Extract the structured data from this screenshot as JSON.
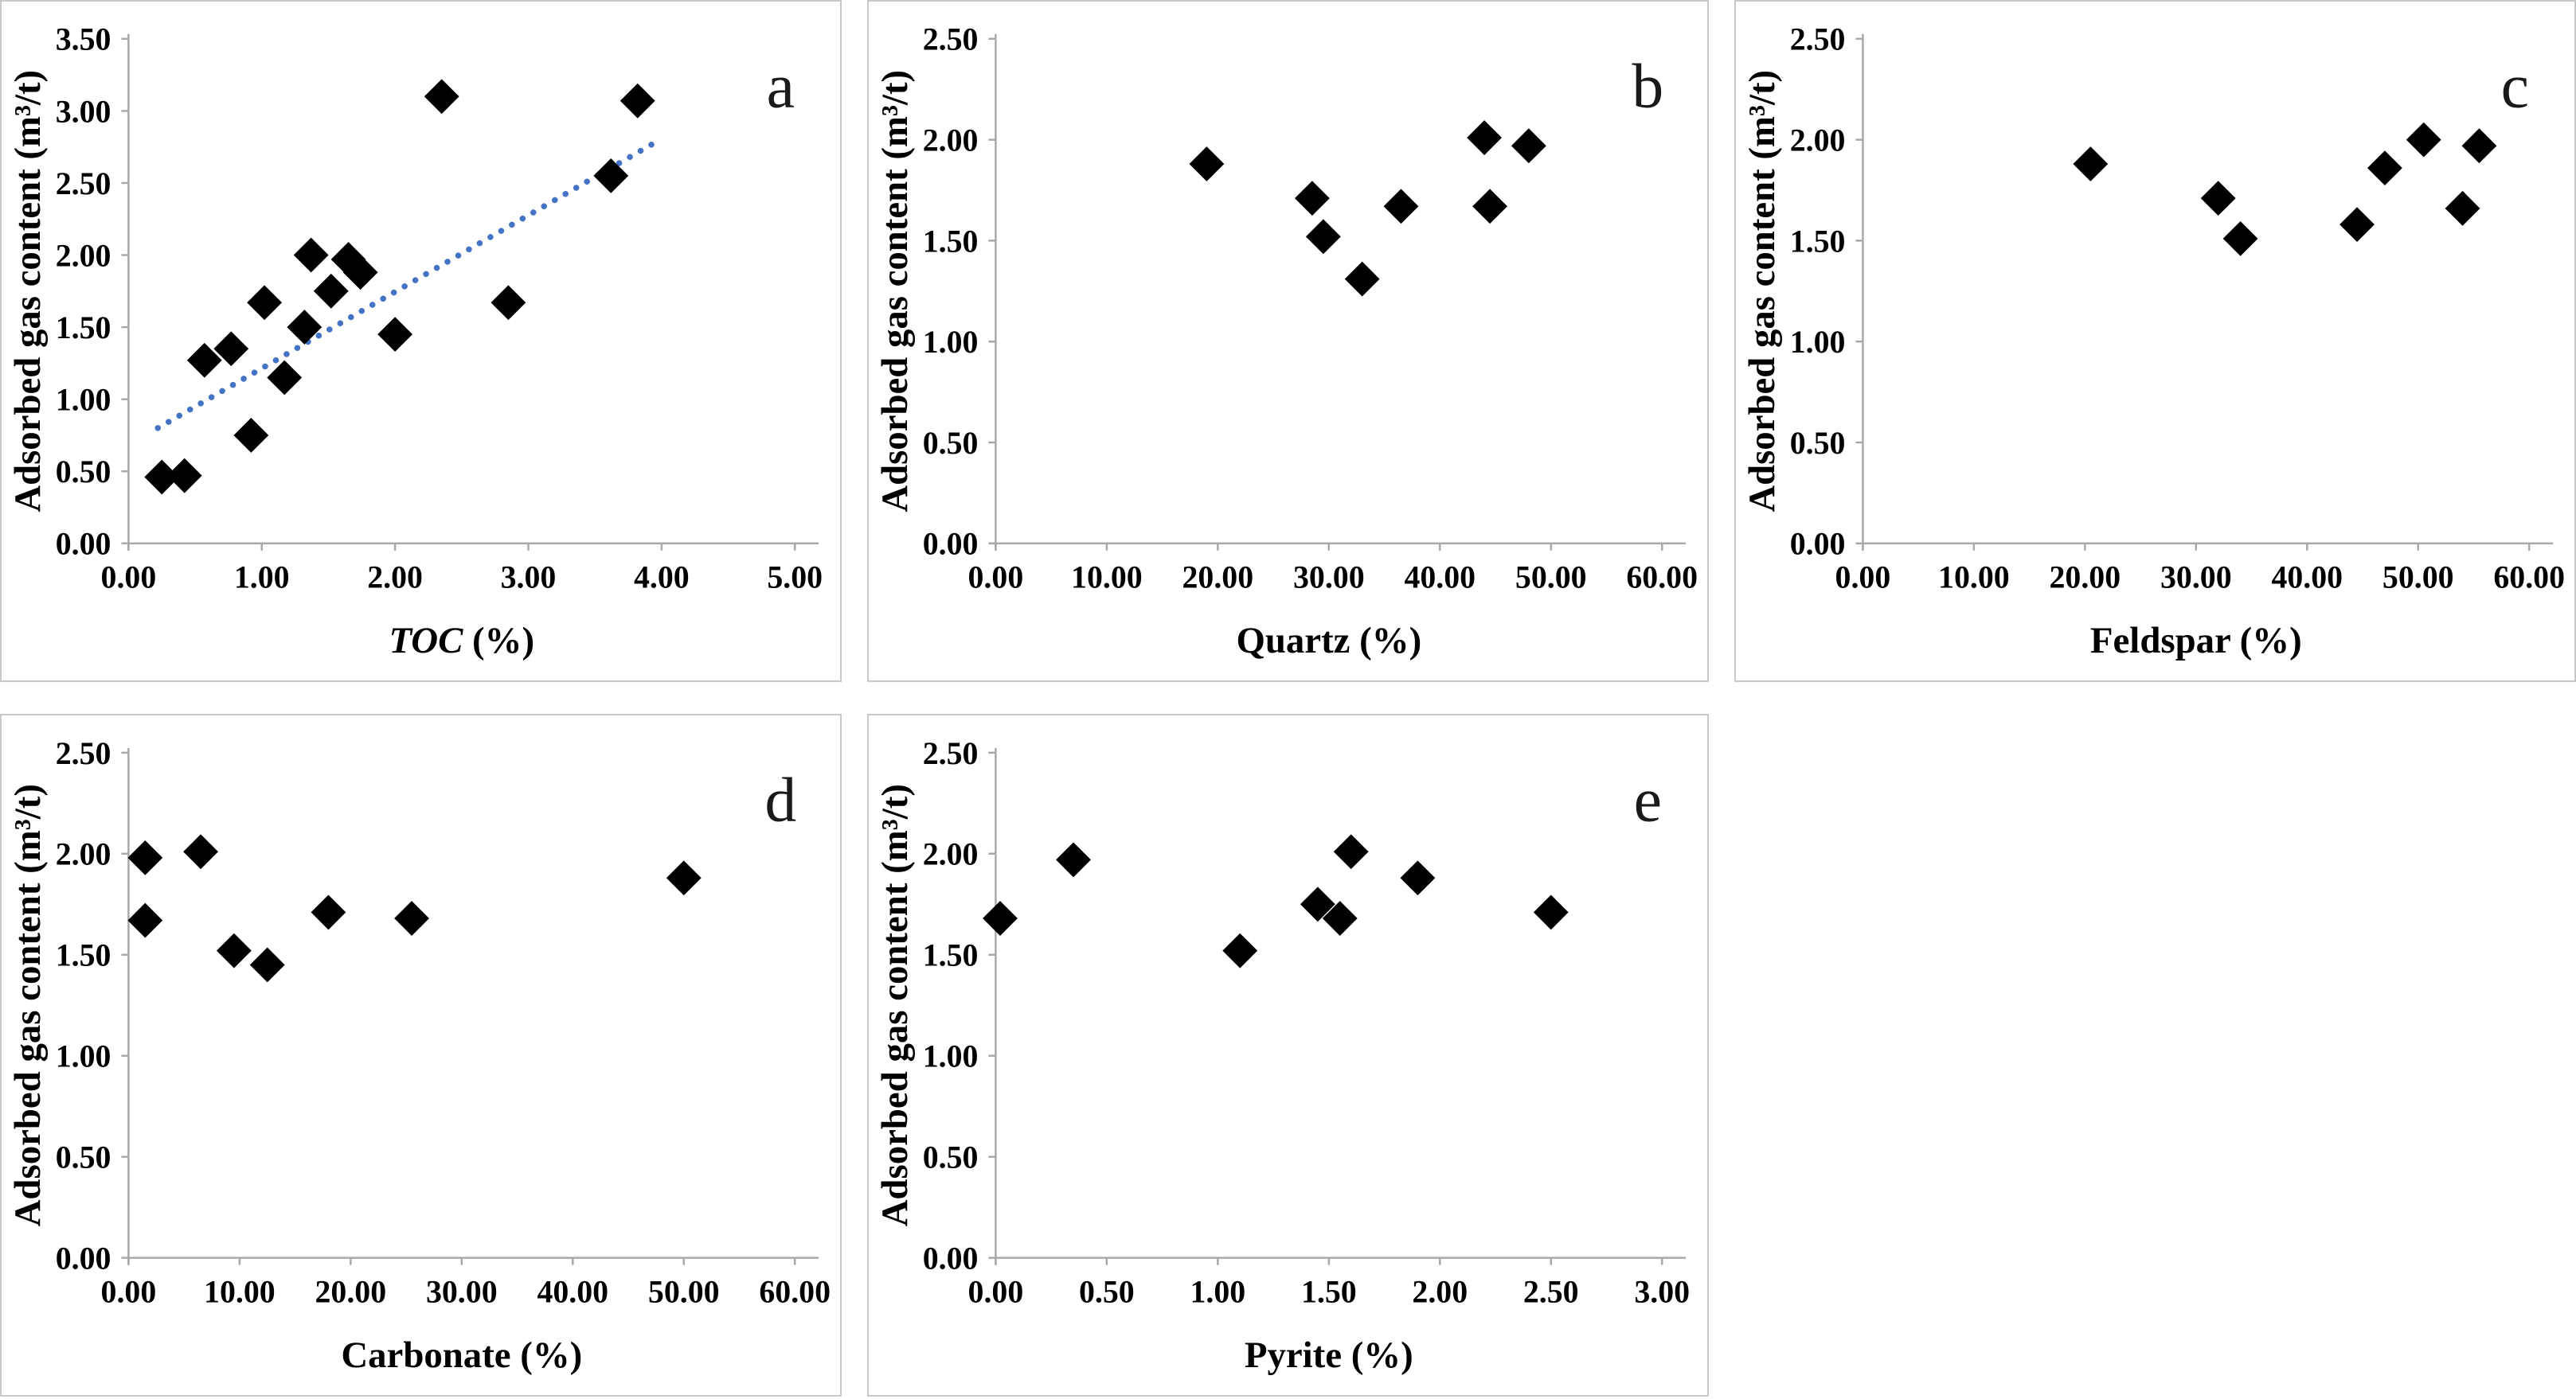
{
  "figure": {
    "background_color": "#ffffff",
    "panel_border_color": "#c9c9c9",
    "axis_line_color": "#a8a8a8",
    "marker_shape": "diamond",
    "marker_color": "#000000",
    "shared_ylabel": "Adsorbed gas content (m³/t)",
    "panel_letters": [
      "a",
      "b",
      "c",
      "d",
      "e"
    ]
  },
  "chart_data": [
    {
      "id": "a",
      "type": "scatter",
      "panel_letter": "a",
      "xlabel": "TOC (%)",
      "xlabel_parts": [
        {
          "text": "TOC",
          "italic": true
        },
        {
          "text": " (%)",
          "italic": false
        }
      ],
      "ylabel": "Adsorbed gas content (m³/t)",
      "xlim": [
        0,
        5
      ],
      "ylim": [
        0,
        3.5
      ],
      "xticks": [
        0,
        1,
        2,
        3,
        4,
        5
      ],
      "yticks": [
        0,
        0.5,
        1,
        1.5,
        2,
        2.5,
        3,
        3.5
      ],
      "tick_decimals": 2,
      "grid": false,
      "legend": null,
      "points": [
        [
          0.25,
          0.46
        ],
        [
          0.42,
          0.47
        ],
        [
          0.57,
          1.27
        ],
        [
          0.77,
          1.35
        ],
        [
          0.92,
          0.75
        ],
        [
          1.02,
          1.67
        ],
        [
          1.17,
          1.15
        ],
        [
          1.32,
          1.5
        ],
        [
          1.37,
          2.0
        ],
        [
          1.52,
          1.75
        ],
        [
          1.65,
          1.97
        ],
        [
          1.74,
          1.88
        ],
        [
          2.0,
          1.45
        ],
        [
          2.35,
          3.1
        ],
        [
          2.85,
          1.67
        ],
        [
          3.62,
          2.55
        ],
        [
          3.82,
          3.07
        ]
      ],
      "trendline": {
        "style": "dotted",
        "color": "#4472C4",
        "x1": 0.22,
        "y1": 0.8,
        "x2": 3.95,
        "y2": 2.78
      }
    },
    {
      "id": "b",
      "type": "scatter",
      "panel_letter": "b",
      "xlabel": "Quartz (%)",
      "xlabel_parts": [
        {
          "text": "Quartz (%)",
          "italic": false
        }
      ],
      "ylabel": "Adsorbed gas content (m³/t)",
      "xlim": [
        0,
        60
      ],
      "ylim": [
        0,
        2.5
      ],
      "xticks": [
        0,
        10,
        20,
        30,
        40,
        50,
        60
      ],
      "yticks": [
        0,
        0.5,
        1,
        1.5,
        2,
        2.5
      ],
      "tick_decimals": 2,
      "grid": false,
      "legend": null,
      "points": [
        [
          19.0,
          1.88
        ],
        [
          28.5,
          1.71
        ],
        [
          29.5,
          1.52
        ],
        [
          33.0,
          1.31
        ],
        [
          36.5,
          1.67
        ],
        [
          44.0,
          2.01
        ],
        [
          44.5,
          1.67
        ],
        [
          48.0,
          1.97
        ]
      ],
      "trendline": null
    },
    {
      "id": "c",
      "type": "scatter",
      "panel_letter": "c",
      "xlabel": "Feldspar (%)",
      "xlabel_parts": [
        {
          "text": "Feldspar (%)",
          "italic": false
        }
      ],
      "ylabel": "Adsorbed gas content (m³/t)",
      "xlim": [
        0,
        60
      ],
      "ylim": [
        0,
        2.5
      ],
      "xticks": [
        0,
        10,
        20,
        30,
        40,
        50,
        60
      ],
      "yticks": [
        0,
        0.5,
        1,
        1.5,
        2,
        2.5
      ],
      "tick_decimals": 2,
      "grid": false,
      "legend": null,
      "points": [
        [
          20.5,
          1.88
        ],
        [
          32.0,
          1.71
        ],
        [
          34.0,
          1.51
        ],
        [
          44.5,
          1.58
        ],
        [
          47.0,
          1.86
        ],
        [
          50.5,
          2.0
        ],
        [
          54.0,
          1.66
        ],
        [
          55.5,
          1.97
        ]
      ],
      "trendline": null
    },
    {
      "id": "d",
      "type": "scatter",
      "panel_letter": "d",
      "xlabel": "Carbonate (%)",
      "xlabel_parts": [
        {
          "text": "Carbonate (%)",
          "italic": false
        }
      ],
      "ylabel": "Adsorbed gas content (m³/t)",
      "xlim": [
        0,
        60
      ],
      "ylim": [
        0,
        2.5
      ],
      "xticks": [
        0,
        10,
        20,
        30,
        40,
        50,
        60
      ],
      "yticks": [
        0,
        0.5,
        1,
        1.5,
        2,
        2.5
      ],
      "tick_decimals": 2,
      "grid": false,
      "legend": null,
      "points": [
        [
          1.5,
          1.98
        ],
        [
          1.5,
          1.67
        ],
        [
          6.5,
          2.01
        ],
        [
          9.5,
          1.52
        ],
        [
          12.5,
          1.45
        ],
        [
          18.0,
          1.71
        ],
        [
          25.5,
          1.68
        ],
        [
          50.0,
          1.88
        ]
      ],
      "trendline": null
    },
    {
      "id": "e",
      "type": "scatter",
      "panel_letter": "e",
      "xlabel": "Pyrite (%)",
      "xlabel_parts": [
        {
          "text": "Pyrite (%)",
          "italic": false
        }
      ],
      "ylabel": "Adsorbed gas content (m³/t)",
      "xlim": [
        0,
        3
      ],
      "ylim": [
        0,
        2.5
      ],
      "xticks": [
        0,
        0.5,
        1,
        1.5,
        2,
        2.5,
        3
      ],
      "yticks": [
        0,
        0.5,
        1,
        1.5,
        2,
        2.5
      ],
      "tick_decimals": 2,
      "grid": false,
      "legend": null,
      "points": [
        [
          0.02,
          1.68
        ],
        [
          0.35,
          1.97
        ],
        [
          1.1,
          1.52
        ],
        [
          1.45,
          1.75
        ],
        [
          1.55,
          1.68
        ],
        [
          1.6,
          2.01
        ],
        [
          1.9,
          1.88
        ],
        [
          2.5,
          1.71
        ]
      ],
      "trendline": null
    }
  ]
}
